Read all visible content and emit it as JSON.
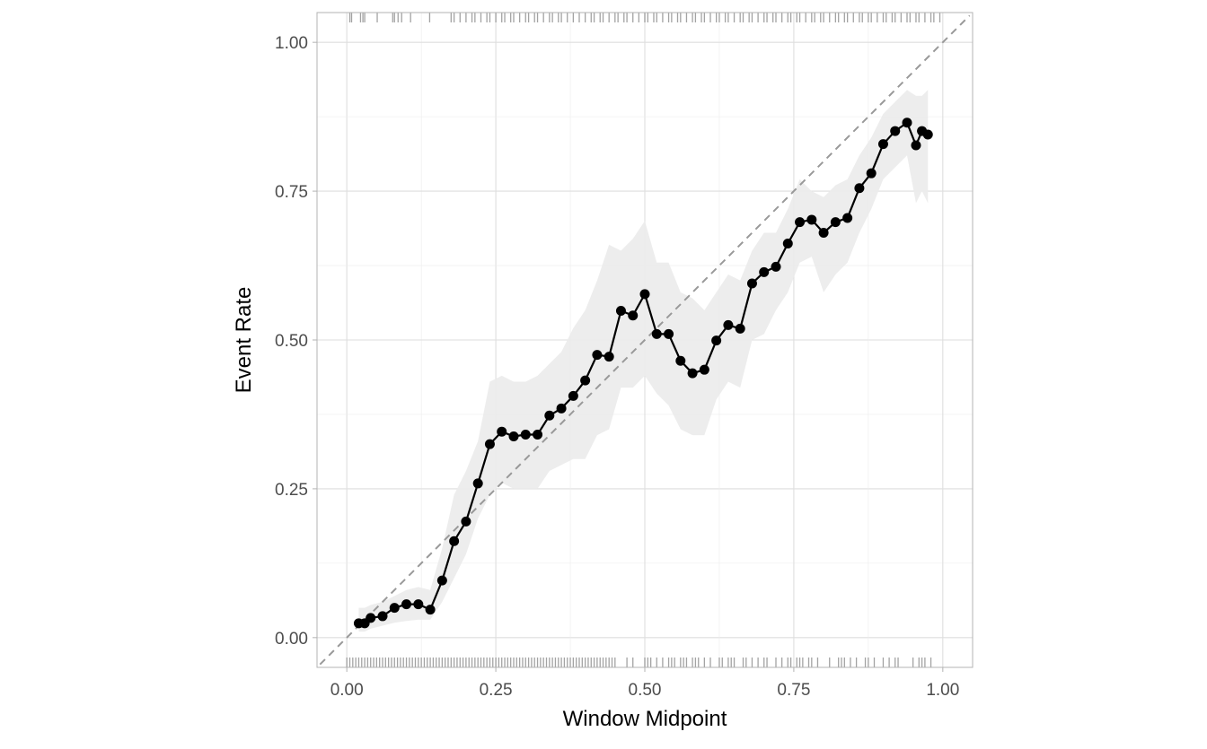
{
  "chart_data": {
    "type": "line",
    "title": "",
    "xlabel": "Window Midpoint",
    "ylabel": "Event Rate",
    "xlim": [
      -0.05,
      1.05
    ],
    "ylim": [
      -0.05,
      1.05
    ],
    "x_ticks": [
      "0.00",
      "0.25",
      "0.50",
      "0.75",
      "1.00"
    ],
    "y_ticks": [
      "0.00",
      "0.25",
      "0.50",
      "0.75",
      "1.00"
    ],
    "grid": true,
    "reference_line": {
      "type": "diagonal y=x",
      "style": "dashed",
      "color": "#999999"
    },
    "colors": {
      "line": "#000000",
      "ribbon": "#ebebeb",
      "rug": "#8c8c8c",
      "border": "#b3b3b3",
      "grid": "#dedede"
    },
    "series": [
      {
        "x": [
          0.02,
          0.03,
          0.04,
          0.06,
          0.08,
          0.1,
          0.12,
          0.14,
          0.16,
          0.18,
          0.2,
          0.22,
          0.24,
          0.26,
          0.28,
          0.3,
          0.32,
          0.34,
          0.36,
          0.38,
          0.4,
          0.42,
          0.44,
          0.46,
          0.48,
          0.5,
          0.52,
          0.54,
          0.56,
          0.58,
          0.6,
          0.62,
          0.64,
          0.66,
          0.68,
          0.7,
          0.72,
          0.74,
          0.76,
          0.78,
          0.8,
          0.82,
          0.84,
          0.86,
          0.88,
          0.9,
          0.92,
          0.94,
          0.955,
          0.965,
          0.975
        ],
        "y": [
          0.024,
          0.024,
          0.033,
          0.036,
          0.05,
          0.056,
          0.056,
          0.047,
          0.096,
          0.162,
          0.195,
          0.259,
          0.325,
          0.346,
          0.338,
          0.341,
          0.341,
          0.373,
          0.385,
          0.406,
          0.432,
          0.475,
          0.472,
          0.549,
          0.541,
          0.577,
          0.51,
          0.51,
          0.465,
          0.444,
          0.45,
          0.499,
          0.525,
          0.519,
          0.595,
          0.614,
          0.623,
          0.662,
          0.698,
          0.702,
          0.68,
          0.698,
          0.705,
          0.755,
          0.78,
          0.829,
          0.851,
          0.865,
          0.827,
          0.851,
          0.845
        ],
        "lower": [
          0.01,
          0.01,
          0.015,
          0.02,
          0.025,
          0.028,
          0.03,
          0.03,
          0.06,
          0.1,
          0.14,
          0.2,
          0.24,
          0.26,
          0.25,
          0.25,
          0.25,
          0.28,
          0.29,
          0.3,
          0.3,
          0.34,
          0.35,
          0.42,
          0.42,
          0.44,
          0.41,
          0.39,
          0.35,
          0.34,
          0.34,
          0.4,
          0.43,
          0.42,
          0.5,
          0.51,
          0.55,
          0.58,
          0.63,
          0.64,
          0.58,
          0.61,
          0.63,
          0.68,
          0.72,
          0.77,
          0.79,
          0.81,
          0.73,
          0.75,
          0.73
        ],
        "upper": [
          0.05,
          0.05,
          0.055,
          0.06,
          0.07,
          0.08,
          0.085,
          0.08,
          0.15,
          0.24,
          0.28,
          0.33,
          0.43,
          0.44,
          0.43,
          0.43,
          0.44,
          0.46,
          0.48,
          0.52,
          0.55,
          0.6,
          0.66,
          0.65,
          0.67,
          0.7,
          0.63,
          0.63,
          0.58,
          0.57,
          0.55,
          0.58,
          0.61,
          0.6,
          0.65,
          0.68,
          0.68,
          0.72,
          0.77,
          0.75,
          0.74,
          0.76,
          0.77,
          0.81,
          0.84,
          0.88,
          0.9,
          0.92,
          0.91,
          0.91,
          0.92
        ]
      }
    ],
    "rug_top": [
      0.005,
      0.008,
      0.023,
      0.027,
      0.03,
      0.051,
      0.077,
      0.08,
      0.086,
      0.092,
      0.107,
      0.139,
      0.175,
      0.18,
      0.19,
      0.2,
      0.21,
      0.215,
      0.225,
      0.235,
      0.24,
      0.25,
      0.26,
      0.265,
      0.275,
      0.28,
      0.29,
      0.3,
      0.305,
      0.315,
      0.32,
      0.33,
      0.34,
      0.345,
      0.355,
      0.36,
      0.37,
      0.38,
      0.39,
      0.4,
      0.41,
      0.415,
      0.425,
      0.43,
      0.44,
      0.45,
      0.455,
      0.465,
      0.47,
      0.48,
      0.49,
      0.5,
      0.505,
      0.515,
      0.52,
      0.53,
      0.54,
      0.545,
      0.555,
      0.56,
      0.57,
      0.58,
      0.585,
      0.595,
      0.6,
      0.61,
      0.62,
      0.625,
      0.635,
      0.64,
      0.65,
      0.66,
      0.665,
      0.675,
      0.68,
      0.69,
      0.7,
      0.705,
      0.715,
      0.72,
      0.73,
      0.74,
      0.745,
      0.755,
      0.76,
      0.77,
      0.78,
      0.785,
      0.795,
      0.8,
      0.81,
      0.82,
      0.825,
      0.835,
      0.84,
      0.85,
      0.86,
      0.865,
      0.875,
      0.88,
      0.89,
      0.9,
      0.905,
      0.915,
      0.92,
      0.93,
      0.94,
      0.945,
      0.955,
      0.96,
      0.97,
      0.98,
      0.985,
      0.995
    ],
    "rug_bottom": [
      0.0,
      0.005,
      0.01,
      0.015,
      0.02,
      0.025,
      0.03,
      0.035,
      0.04,
      0.045,
      0.05,
      0.055,
      0.06,
      0.065,
      0.07,
      0.075,
      0.08,
      0.085,
      0.09,
      0.095,
      0.1,
      0.105,
      0.11,
      0.115,
      0.12,
      0.125,
      0.13,
      0.135,
      0.14,
      0.145,
      0.15,
      0.155,
      0.16,
      0.165,
      0.17,
      0.175,
      0.18,
      0.185,
      0.19,
      0.195,
      0.2,
      0.205,
      0.21,
      0.215,
      0.22,
      0.225,
      0.23,
      0.235,
      0.24,
      0.245,
      0.25,
      0.255,
      0.26,
      0.265,
      0.27,
      0.275,
      0.28,
      0.285,
      0.29,
      0.295,
      0.3,
      0.305,
      0.31,
      0.315,
      0.32,
      0.325,
      0.33,
      0.335,
      0.34,
      0.345,
      0.35,
      0.355,
      0.36,
      0.365,
      0.37,
      0.375,
      0.38,
      0.385,
      0.39,
      0.395,
      0.4,
      0.405,
      0.41,
      0.415,
      0.42,
      0.425,
      0.43,
      0.435,
      0.44,
      0.445,
      0.45,
      0.47,
      0.48,
      0.5,
      0.505,
      0.51,
      0.52,
      0.53,
      0.54,
      0.545,
      0.55,
      0.56,
      0.565,
      0.57,
      0.58,
      0.585,
      0.59,
      0.6,
      0.61,
      0.625,
      0.63,
      0.64,
      0.645,
      0.65,
      0.665,
      0.67,
      0.68,
      0.69,
      0.7,
      0.705,
      0.72,
      0.73,
      0.74,
      0.745,
      0.755,
      0.76,
      0.765,
      0.775,
      0.78,
      0.79,
      0.81,
      0.825,
      0.83,
      0.835,
      0.845,
      0.855,
      0.87,
      0.875,
      0.885,
      0.9,
      0.91,
      0.92,
      0.925,
      0.95,
      0.96,
      0.965,
      0.97,
      0.98
    ]
  }
}
